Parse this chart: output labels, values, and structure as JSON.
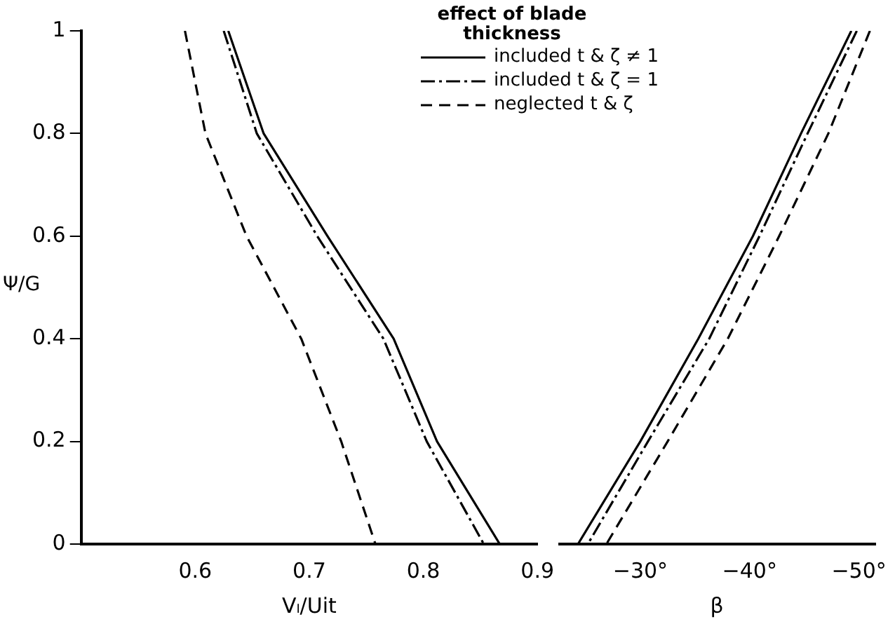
{
  "chart_data": [
    {
      "type": "line",
      "xlabel": "Vₗ/Uit",
      "ylabel": "Ψ/G",
      "legend_title": "effect of blade thickness",
      "legend": "top right",
      "xlim": [
        0.5,
        0.9
      ],
      "xticks": [
        0.6,
        0.7,
        0.8,
        0.9
      ],
      "ylim": [
        0,
        1
      ],
      "yticks": [
        0,
        0.2,
        0.4,
        0.6,
        0.8,
        1
      ],
      "grid": false,
      "marker": "none",
      "series": [
        {
          "name": "included t & ζ ≠ 1",
          "color": "#000000",
          "line_style": "solid",
          "x": [
            0.629,
            0.66,
            0.716,
            0.774,
            0.812,
            0.867
          ],
          "values": [
            1,
            0.8,
            0.6,
            0.4,
            0.2,
            0
          ]
        },
        {
          "name": "included t & ζ = 1",
          "color": "#000000",
          "line_style": "dashdot",
          "x": [
            0.625,
            0.654,
            0.707,
            0.765,
            0.803,
            0.853
          ],
          "values": [
            1,
            0.8,
            0.6,
            0.4,
            0.2,
            0
          ]
        },
        {
          "name": "neglected t & ζ",
          "color": "#000000",
          "line_style": "dashed",
          "x": [
            0.591,
            0.609,
            0.645,
            0.693,
            0.728,
            0.758
          ],
          "values": [
            1,
            0.8,
            0.6,
            0.4,
            0.2,
            0
          ]
        }
      ]
    },
    {
      "type": "line",
      "xlabel": "β",
      "xlim": [
        -22.5,
        -51.5
      ],
      "xticks": [
        {
          "value": -30,
          "label": "−30°"
        },
        {
          "value": -40,
          "label": "−40°"
        },
        {
          "value": -50,
          "label": "−50°"
        }
      ],
      "ylim": [
        0,
        1
      ],
      "tick_labels": "x",
      "grid": false,
      "legend": false,
      "marker": "none",
      "series": [
        {
          "color": "#000000",
          "line_style": "solid",
          "x": [
            -49.3,
            -44.7,
            -40.3,
            -35.3,
            -30.0,
            -24.3
          ],
          "values": [
            1,
            0.8,
            0.6,
            0.4,
            0.2,
            0
          ]
        },
        {
          "color": "#000000",
          "line_style": "dashdot",
          "x": [
            -49.8,
            -45.3,
            -40.9,
            -36.3,
            -30.7,
            -25.2
          ],
          "values": [
            1,
            0.8,
            0.6,
            0.4,
            0.2,
            0
          ]
        },
        {
          "color": "#000000",
          "line_style": "dashed",
          "x": [
            -51.0,
            -47.2,
            -42.7,
            -38.0,
            -32.5,
            -26.9
          ],
          "values": [
            1,
            0.8,
            0.6,
            0.4,
            0.2,
            0
          ]
        }
      ]
    }
  ]
}
